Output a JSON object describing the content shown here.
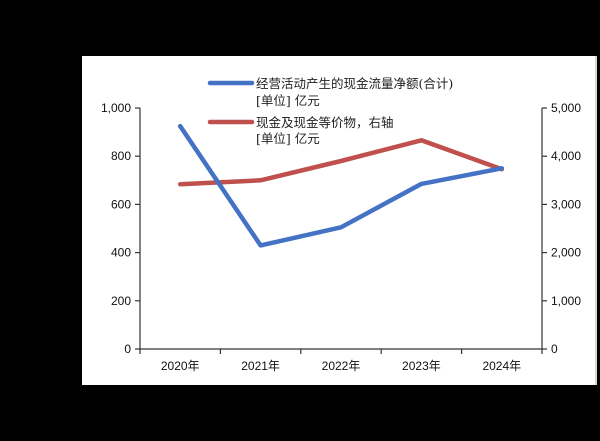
{
  "chart_data": {
    "type": "line",
    "title": "",
    "categories": [
      "2020年",
      "2021年",
      "2022年",
      "2023年",
      "2024年"
    ],
    "series": [
      {
        "name": "经营活动产生的现金流量净额(合计)",
        "unit_line": "[单位] 亿元",
        "axis": "left",
        "color": "#4472C4",
        "values": [
          925,
          430,
          505,
          685,
          750
        ]
      },
      {
        "name": "现金及现金等价物, 右轴",
        "unit_line": "[单位] 亿元",
        "axis": "right",
        "color": "#C0504D",
        "values": [
          3420,
          3500,
          3900,
          4330,
          3730
        ]
      }
    ],
    "left_axis": {
      "ylim": [
        0,
        1000
      ],
      "ticks": [
        0,
        200,
        400,
        600,
        800,
        1000
      ],
      "tick_labels": [
        "0",
        "200",
        "400",
        "600",
        "800",
        "1,000"
      ]
    },
    "right_axis": {
      "ylim": [
        0,
        5000
      ],
      "ticks": [
        0,
        1000,
        2000,
        3000,
        4000,
        5000
      ],
      "tick_labels": [
        "0",
        "1,000",
        "2,000",
        "3,000",
        "4,000",
        "5,000"
      ]
    },
    "xlabel": "",
    "ylabel": "",
    "grid": false,
    "legend_position": "top-inside"
  },
  "legend": {
    "items": [
      {
        "label": "经营活动产生的现金流量净额(合计)",
        "unit": "[单位] 亿元",
        "color": "#4472C4"
      },
      {
        "label": "现金及现金等价物，右轴",
        "unit": "[单位] 亿元",
        "color": "#C0504D"
      }
    ]
  }
}
